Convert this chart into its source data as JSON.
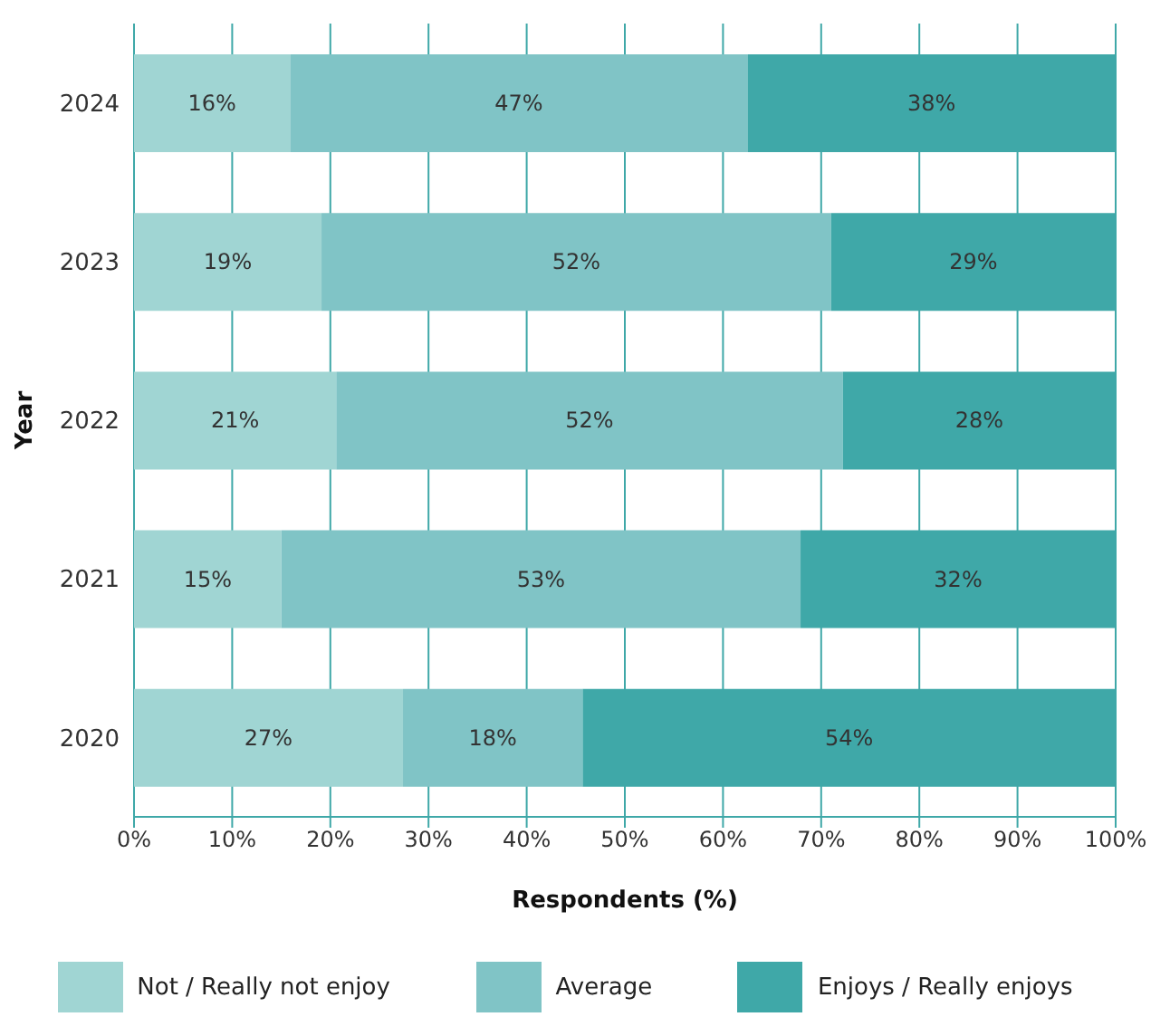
{
  "chart_data": {
    "type": "bar",
    "orientation": "horizontal",
    "stacked": true,
    "categories": [
      "2024",
      "2023",
      "2022",
      "2021",
      "2020"
    ],
    "series": [
      {
        "name": "Not / Really not enjoy",
        "color": "#a0d5d3",
        "values": [
          15.9,
          19.1,
          20.6,
          15.0,
          27.4
        ],
        "value_labels": [
          "16%",
          "19%",
          "21%",
          "15%",
          "27%"
        ]
      },
      {
        "name": "Average",
        "color": "#80c4c6",
        "values": [
          46.6,
          51.9,
          51.6,
          52.9,
          18.3
        ],
        "value_labels": [
          "47%",
          "52%",
          "52%",
          "53%",
          "18%"
        ]
      },
      {
        "name": "Enjoys / Really enjoys",
        "color": "#3fa8a8",
        "values": [
          37.5,
          29.0,
          27.8,
          32.1,
          54.3
        ],
        "value_labels": [
          "38%",
          "29%",
          "28%",
          "32%",
          "54%"
        ]
      }
    ],
    "xlim": [
      0,
      100
    ],
    "xticks": [
      {
        "value": 0,
        "label": "0%"
      },
      {
        "value": 10,
        "label": "10%"
      },
      {
        "value": 20,
        "label": "20%"
      },
      {
        "value": 30,
        "label": "30%"
      },
      {
        "value": 40,
        "label": "40%"
      },
      {
        "value": 50,
        "label": "50%"
      },
      {
        "value": 60,
        "label": "60%"
      },
      {
        "value": 70,
        "label": "70%"
      },
      {
        "value": 80,
        "label": "80%"
      },
      {
        "value": 90,
        "label": "90%"
      },
      {
        "value": 100,
        "label": "100%"
      }
    ],
    "xlabel": "Respondents (%)",
    "ylabel": "Year",
    "grid": "x",
    "legend": "bottom"
  }
}
